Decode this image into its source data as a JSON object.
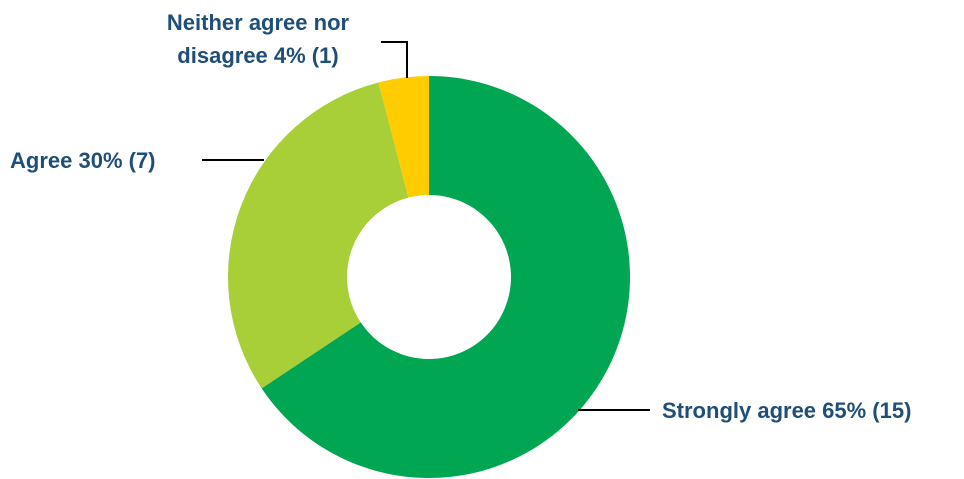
{
  "chart_data": {
    "type": "pie",
    "variant": "donut",
    "slices": [
      {
        "label": "Strongly agree",
        "percent": 65,
        "count": 15,
        "color": "#00a651",
        "text": "Strongly agree 65% (15)"
      },
      {
        "label": "Agree",
        "percent": 30,
        "count": 7,
        "color": "#a8cf38",
        "text": "Agree 30% (7)"
      },
      {
        "label": "Neither agree nor disagree",
        "percent": 4,
        "count": 1,
        "color": "#ffcc00",
        "text_lines": [
          "Neither agree nor",
          "disagree 4% (1)"
        ]
      }
    ],
    "label_color": "#1f4e79",
    "legend": "none"
  }
}
